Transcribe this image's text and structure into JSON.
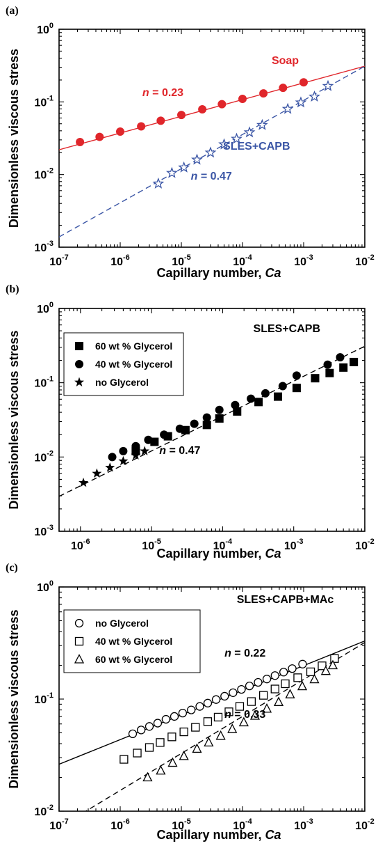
{
  "chart_data": [
    {
      "panel_label": "(a)",
      "type": "scatter",
      "xlabel": "Capillary number, Ca",
      "ylabel": "Dimensionless viscous stress",
      "xscale": "log",
      "yscale": "log",
      "xlim": [
        1e-07,
        0.01
      ],
      "ylim": [
        0.001,
        1
      ],
      "x_ticks": [
        {
          "base": "10",
          "exp": "-7"
        },
        {
          "base": "10",
          "exp": "-6"
        },
        {
          "base": "10",
          "exp": "-5"
        },
        {
          "base": "10",
          "exp": "-4"
        },
        {
          "base": "10",
          "exp": "-3"
        },
        {
          "base": "10",
          "exp": "-2"
        }
      ],
      "y_ticks": [
        {
          "base": "10",
          "exp": "-3"
        },
        {
          "base": "10",
          "exp": "-2"
        },
        {
          "base": "10",
          "exp": "-1"
        },
        {
          "base": "10",
          "exp": "0"
        }
      ],
      "grid": false,
      "series": [
        {
          "name": "Soap",
          "color": "#e0262b",
          "marker": "circle-filled",
          "x": [
            2.2e-07,
            4.6e-07,
            1e-06,
            2.2e-06,
            4.6e-06,
            1e-05,
            2.2e-05,
            4.6e-05,
            0.0001,
            0.00022,
            0.00046,
            0.001
          ],
          "y": [
            0.028,
            0.033,
            0.039,
            0.046,
            0.055,
            0.066,
            0.079,
            0.093,
            0.11,
            0.131,
            0.156,
            0.186
          ]
        },
        {
          "name": "SLES+CAPB",
          "color": "#3a55a5",
          "marker": "star-open",
          "x": [
            4.2e-06,
            7e-06,
            1.1e-05,
            1.8e-05,
            3e-05,
            5e-05,
            8e-05,
            0.00013,
            0.00021,
            0.00055,
            0.0009,
            0.0015,
            0.0025
          ],
          "y": [
            0.0075,
            0.0105,
            0.0125,
            0.016,
            0.02,
            0.026,
            0.031,
            0.038,
            0.048,
            0.08,
            0.098,
            0.118,
            0.165
          ]
        }
      ],
      "fits": [
        {
          "label": "n = 0.23",
          "n": 0.23,
          "style": "solid",
          "color": "#e0262b",
          "x_range": [
            1e-07,
            0.01
          ],
          "y_at_xmax": 0.31
        },
        {
          "label": "n = 0.47",
          "n": 0.47,
          "style": "dashed",
          "color": "#3a55a5",
          "x_range": [
            1e-07,
            0.01
          ],
          "y_at_xmax": 0.31
        }
      ],
      "annotations": [
        {
          "text": "Soap",
          "color": "#e0262b",
          "x": 0.0005,
          "y": 0.33
        },
        {
          "text": "SLES+CAPB",
          "color": "#3a55a5",
          "x": 0.00017,
          "y": 0.022
        },
        {
          "n": "n",
          "rest": " = 0.23",
          "color": "#e0262b",
          "x": 5e-06,
          "y": 0.12
        },
        {
          "n": "n",
          "rest": " = 0.47",
          "color": "#3a55a5",
          "x": 3.1e-05,
          "y": 0.0085
        }
      ]
    },
    {
      "panel_label": "(b)",
      "type": "scatter",
      "xlabel": "Capillary number, Ca",
      "ylabel": "Dimensionless viscous stress",
      "xscale": "log",
      "yscale": "log",
      "xlim": [
        5e-07,
        0.01
      ],
      "ylim": [
        0.001,
        1
      ],
      "x_ticks": [
        {
          "base": "10",
          "exp": "-6"
        },
        {
          "base": "10",
          "exp": "-5"
        },
        {
          "base": "10",
          "exp": "-4"
        },
        {
          "base": "10",
          "exp": "-3"
        },
        {
          "base": "10",
          "exp": "-2"
        }
      ],
      "y_ticks": [
        {
          "base": "10",
          "exp": "-3"
        },
        {
          "base": "10",
          "exp": "-2"
        },
        {
          "base": "10",
          "exp": "-1"
        },
        {
          "base": "10",
          "exp": "0"
        }
      ],
      "grid": false,
      "legend_position": "top-left",
      "series": [
        {
          "name": "60 wt % Glycerol",
          "color": "#000000",
          "marker": "square-filled",
          "x": [
            6e-06,
            1.1e-05,
            1.7e-05,
            3e-05,
            6e-05,
            9e-05,
            0.00016,
            0.00032,
            0.0006,
            0.0011,
            0.002,
            0.0032,
            0.005,
            0.007
          ],
          "y": [
            0.012,
            0.016,
            0.019,
            0.023,
            0.027,
            0.033,
            0.041,
            0.055,
            0.065,
            0.085,
            0.115,
            0.135,
            0.16,
            0.19
          ]
        },
        {
          "name": "40 wt % Glycerol",
          "color": "#000000",
          "marker": "circle-filled",
          "x": [
            2.8e-06,
            4e-06,
            6e-06,
            9e-06,
            1.5e-05,
            2.5e-05,
            4e-05,
            6e-05,
            9e-05,
            0.00015,
            0.00025,
            0.0004,
            0.0007,
            0.0011,
            0.003,
            0.0045
          ],
          "y": [
            0.01,
            0.012,
            0.014,
            0.017,
            0.02,
            0.024,
            0.028,
            0.034,
            0.043,
            0.05,
            0.061,
            0.072,
            0.09,
            0.125,
            0.175,
            0.22
          ]
        },
        {
          "name": "no Glycerol",
          "color": "#000000",
          "marker": "star-filled",
          "x": [
            1.1e-06,
            1.7e-06,
            2.6e-06,
            4e-06,
            6e-06,
            8e-06
          ],
          "y": [
            0.0045,
            0.006,
            0.0072,
            0.0088,
            0.0105,
            0.012
          ]
        }
      ],
      "fits": [
        {
          "label": "n = 0.47",
          "n": 0.47,
          "style": "dashed",
          "color": "#000000",
          "x_range": [
            5e-07,
            0.01
          ],
          "y_at_xmax": 0.31
        }
      ],
      "annotations": [
        {
          "text": "SLES+CAPB",
          "color": "#000000",
          "x": 0.0008,
          "y": 0.48
        },
        {
          "n": "n",
          "rest": " = 0.47",
          "color": "#000000",
          "x": 2.5e-05,
          "y": 0.011
        }
      ]
    },
    {
      "panel_label": "(c)",
      "type": "scatter",
      "xlabel": "Capillary number, Ca",
      "ylabel": "Dimensionless viscous stress",
      "xscale": "log",
      "yscale": "log",
      "xlim": [
        1e-07,
        0.01
      ],
      "ylim": [
        0.01,
        1
      ],
      "x_ticks": [
        {
          "base": "10",
          "exp": "-7"
        },
        {
          "base": "10",
          "exp": "-6"
        },
        {
          "base": "10",
          "exp": "-5"
        },
        {
          "base": "10",
          "exp": "-4"
        },
        {
          "base": "10",
          "exp": "-3"
        },
        {
          "base": "10",
          "exp": "-2"
        }
      ],
      "y_ticks": [
        {
          "base": "10",
          "exp": "-2"
        },
        {
          "base": "10",
          "exp": "-1"
        },
        {
          "base": "10",
          "exp": "0"
        }
      ],
      "grid": false,
      "legend_position": "top-left",
      "series": [
        {
          "name": "no Glycerol",
          "color": "#000000",
          "marker": "circle-open",
          "x": [
            1.6e-06,
            2.2e-06,
            3e-06,
            4.1e-06,
            5.6e-06,
            7.7e-06,
            1.05e-05,
            1.45e-05,
            2e-05,
            2.7e-05,
            3.7e-05,
            5.1e-05,
            7e-05,
            9.6e-05,
            0.00013,
            0.00018,
            0.00025,
            0.00034,
            0.00047,
            0.00065,
            0.00096
          ],
          "y": [
            0.049,
            0.053,
            0.057,
            0.061,
            0.066,
            0.07,
            0.075,
            0.08,
            0.086,
            0.092,
            0.099,
            0.106,
            0.114,
            0.122,
            0.131,
            0.141,
            0.151,
            0.162,
            0.174,
            0.187,
            0.205
          ]
        },
        {
          "name": "40 wt % Glycerol",
          "color": "#000000",
          "marker": "square-open",
          "x": [
            1.15e-06,
            1.9e-06,
            3e-06,
            4.5e-06,
            7e-06,
            1.1e-05,
            1.7e-05,
            2.7e-05,
            4e-05,
            6e-05,
            9e-05,
            0.00014,
            0.00022,
            0.00034,
            0.0005,
            0.0008,
            0.0013,
            0.002,
            0.0032
          ],
          "y": [
            0.029,
            0.033,
            0.037,
            0.041,
            0.046,
            0.051,
            0.056,
            0.063,
            0.069,
            0.077,
            0.086,
            0.095,
            0.108,
            0.123,
            0.137,
            0.155,
            0.175,
            0.198,
            0.23
          ]
        },
        {
          "name": "60 wt % Glycerol",
          "color": "#000000",
          "marker": "triangle-open",
          "x": [
            2.8e-06,
            4.6e-06,
            7.2e-06,
            1.1e-05,
            1.8e-05,
            2.8e-05,
            4.4e-05,
            6.8e-05,
            0.000105,
            0.00016,
            0.00025,
            0.00039,
            0.0006,
            0.00095,
            0.0015,
            0.0023,
            0.003
          ],
          "y": [
            0.02,
            0.023,
            0.027,
            0.031,
            0.036,
            0.041,
            0.047,
            0.054,
            0.062,
            0.071,
            0.082,
            0.094,
            0.11,
            0.13,
            0.15,
            0.178,
            0.2
          ]
        }
      ],
      "fits": [
        {
          "label": "n = 0.22",
          "n": 0.22,
          "style": "solid",
          "color": "#000000",
          "x_range": [
            1e-07,
            0.01
          ],
          "y_at_xmax": 0.33
        },
        {
          "label": "n = 0.33",
          "n": 0.33,
          "style": "dashed",
          "color": "#000000",
          "x_range": [
            1e-07,
            0.01
          ],
          "y_at_xmax": 0.32
        }
      ],
      "annotations": [
        {
          "text": "SLES+CAPB+MAc",
          "color": "#000000",
          "x": 0.0005,
          "y": 0.72
        },
        {
          "n": "n",
          "rest": " = 0.22",
          "color": "#000000",
          "x": 0.00011,
          "y": 0.24
        },
        {
          "n": "n",
          "rest": " = 0.33",
          "color": "#000000",
          "x": 0.00011,
          "y": 0.068
        }
      ]
    }
  ]
}
